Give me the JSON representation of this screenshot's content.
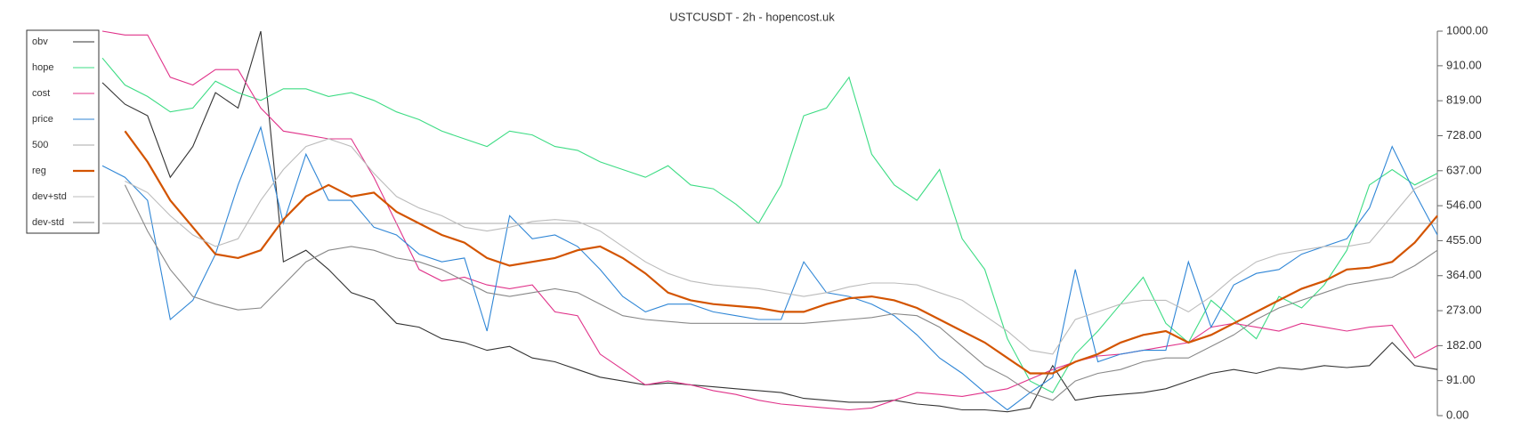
{
  "chart_data": {
    "type": "line",
    "title": "USTCUSDT - 2h - hopencost.uk",
    "ylim": [
      0,
      1000
    ],
    "yticks": [
      {
        "value": 0,
        "label": "0.00"
      },
      {
        "value": 91,
        "label": "91.00"
      },
      {
        "value": 182,
        "label": "182.00"
      },
      {
        "value": 273,
        "label": "273.00"
      },
      {
        "value": 364,
        "label": "364.00"
      },
      {
        "value": 455,
        "label": "455.00"
      },
      {
        "value": 546,
        "label": "546.00"
      },
      {
        "value": 637,
        "label": "637.00"
      },
      {
        "value": 728,
        "label": "728.00"
      },
      {
        "value": 819,
        "label": "819.00"
      },
      {
        "value": 910,
        "label": "910.00"
      },
      {
        "value": 1000,
        "label": "1000.00"
      }
    ],
    "legend": "upper left",
    "series": [
      {
        "name": "obv",
        "color": "#333333",
        "values": [
          866,
          810,
          780,
          620,
          700,
          840,
          800,
          1000,
          400,
          430,
          380,
          320,
          300,
          240,
          230,
          200,
          190,
          170,
          180,
          150,
          140,
          120,
          100,
          90,
          80,
          85,
          80,
          75,
          70,
          65,
          60,
          45,
          40,
          35,
          35,
          40,
          30,
          25,
          15,
          15,
          10,
          20,
          130,
          40,
          50,
          55,
          60,
          70,
          90,
          110,
          120,
          110,
          125,
          120,
          130,
          125,
          130,
          190,
          130,
          120
        ]
      },
      {
        "name": "hope",
        "color": "#3ddc84",
        "values": [
          930,
          860,
          830,
          790,
          800,
          870,
          840,
          820,
          850,
          850,
          830,
          840,
          820,
          790,
          770,
          740,
          720,
          700,
          740,
          730,
          700,
          690,
          660,
          640,
          620,
          650,
          600,
          590,
          550,
          500,
          600,
          780,
          800,
          880,
          680,
          600,
          560,
          640,
          460,
          380,
          200,
          90,
          60,
          160,
          220,
          290,
          360,
          240,
          190,
          300,
          250,
          200,
          310,
          280,
          340,
          430,
          600,
          640,
          600,
          630
        ]
      },
      {
        "name": "cost",
        "color": "#e0338a",
        "values": [
          1000,
          990,
          990,
          880,
          860,
          900,
          900,
          800,
          740,
          730,
          720,
          720,
          620,
          500,
          380,
          350,
          360,
          340,
          330,
          340,
          270,
          260,
          160,
          120,
          80,
          90,
          80,
          65,
          55,
          40,
          30,
          25,
          20,
          15,
          20,
          40,
          60,
          55,
          50,
          60,
          70,
          95,
          120,
          140,
          155,
          160,
          170,
          180,
          190,
          230,
          240,
          230,
          220,
          240,
          230,
          220,
          230,
          235,
          150,
          182
        ]
      },
      {
        "name": "price",
        "color": "#2f86d6",
        "values": [
          650,
          620,
          560,
          250,
          300,
          420,
          600,
          750,
          500,
          680,
          560,
          560,
          490,
          470,
          420,
          400,
          410,
          220,
          520,
          460,
          470,
          440,
          380,
          310,
          270,
          290,
          290,
          270,
          260,
          250,
          250,
          400,
          320,
          310,
          290,
          260,
          210,
          150,
          110,
          60,
          15,
          60,
          100,
          380,
          140,
          160,
          170,
          170,
          400,
          230,
          340,
          370,
          380,
          420,
          440,
          460,
          540,
          700,
          580,
          470
        ]
      },
      {
        "name": "500",
        "color": "#aaaaaa",
        "values": [
          500,
          500,
          500,
          500,
          500,
          500,
          500,
          500,
          500,
          500,
          500,
          500,
          500,
          500,
          500,
          500,
          500,
          500,
          500,
          500,
          500,
          500,
          500,
          500,
          500,
          500,
          500,
          500,
          500,
          500,
          500,
          500,
          500,
          500,
          500,
          500,
          500,
          500,
          500,
          500,
          500,
          500,
          500,
          500,
          500,
          500,
          500,
          500,
          500,
          500,
          500,
          500,
          500,
          500,
          500,
          500,
          500,
          500,
          500,
          500
        ]
      },
      {
        "name": "reg",
        "color": "#d35400",
        "values": [
          null,
          740,
          660,
          560,
          490,
          420,
          410,
          430,
          510,
          570,
          600,
          570,
          580,
          530,
          500,
          470,
          450,
          410,
          390,
          400,
          410,
          430,
          440,
          410,
          370,
          320,
          300,
          290,
          285,
          280,
          270,
          270,
          290,
          305,
          310,
          300,
          280,
          250,
          220,
          190,
          150,
          110,
          110,
          140,
          160,
          190,
          210,
          220,
          190,
          210,
          240,
          270,
          300,
          330,
          350,
          380,
          385,
          400,
          450,
          520
        ]
      },
      {
        "name": "dev+std",
        "color": "#bbbbbb",
        "values": [
          null,
          610,
          580,
          520,
          470,
          440,
          460,
          560,
          640,
          700,
          720,
          700,
          630,
          570,
          540,
          520,
          490,
          480,
          490,
          505,
          510,
          505,
          480,
          440,
          400,
          370,
          350,
          340,
          335,
          330,
          320,
          310,
          320,
          335,
          345,
          345,
          340,
          320,
          300,
          260,
          220,
          170,
          160,
          250,
          270,
          290,
          300,
          300,
          270,
          310,
          360,
          400,
          420,
          430,
          440,
          440,
          450,
          520,
          590,
          620
        ]
      },
      {
        "name": "dev-std",
        "color": "#888888",
        "values": [
          null,
          600,
          480,
          380,
          310,
          290,
          275,
          280,
          340,
          400,
          430,
          440,
          430,
          410,
          400,
          380,
          350,
          320,
          310,
          320,
          330,
          320,
          290,
          260,
          250,
          245,
          240,
          240,
          240,
          240,
          240,
          240,
          245,
          250,
          255,
          265,
          260,
          230,
          180,
          130,
          100,
          60,
          40,
          90,
          110,
          120,
          140,
          150,
          150,
          180,
          210,
          250,
          280,
          300,
          320,
          340,
          350,
          360,
          390,
          430
        ]
      }
    ]
  }
}
